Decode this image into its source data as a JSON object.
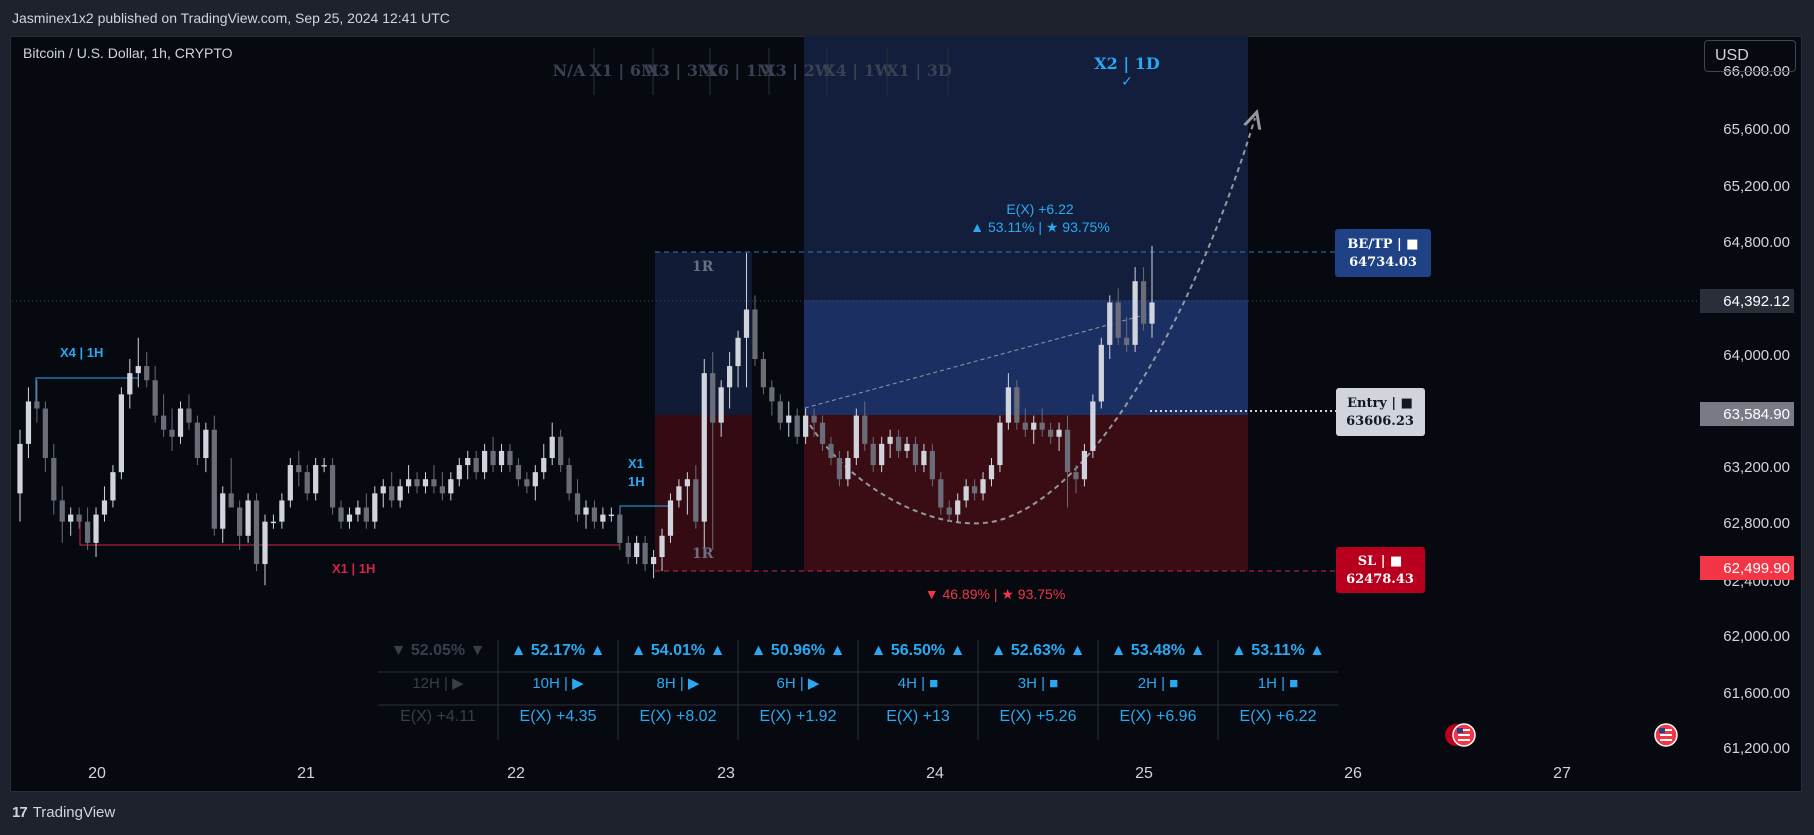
{
  "header": {
    "published": "Jasminex1x2 published on TradingView.com, Sep 25, 2024 12:41 UTC"
  },
  "symbol": {
    "title": "Bitcoin / U.S. Dollar, 1h, CRYPTO"
  },
  "currency_button": "USD",
  "footer": {
    "brand": "TradingView",
    "logo_mark": "17"
  },
  "tf_strip": {
    "items": [
      "N/A",
      "X1 | 6M",
      "X3 | 3M",
      "X6 | 1M",
      "X3 | 2W",
      "X4 | 1W",
      "X1 | 3D"
    ],
    "active": "X2 | 1D",
    "active_mark": "✓"
  },
  "annotations": {
    "x4_1h": "X4 | 1H",
    "x1_1h_low": "X1 | 1H",
    "x1_1h_mid_a": "X1",
    "x1_1h_mid_b": "1H",
    "r_top": "1R",
    "r_bottom": "1R",
    "ex_top": "E(X) +6.22",
    "stats_top": "▲ 53.11% | ★ 93.75%",
    "stats_bottom": "▼ 46.89% | ★ 93.75%"
  },
  "labels": {
    "tp": {
      "title": "BE/TP | ■",
      "value": "64734.03"
    },
    "entry": {
      "title": "Entry | ■",
      "value": "63606.23"
    },
    "sl": {
      "title": "SL | ■",
      "value": "62478.43"
    }
  },
  "price_axis": {
    "ticks": [
      "65,600.00",
      "65,200.00",
      "64,800.00",
      "64,000.00",
      "63,200.00",
      "62,800.00",
      "62,000.00",
      "61,600.00"
    ],
    "partial_top": "66,000.00",
    "partial_bottom": "61,200.00",
    "partial_sl_under": "62,400.00",
    "current": "64,392.12",
    "entry_badge": "63,584.90",
    "sl_badge": "62,499.90"
  },
  "time_axis": {
    "labels": [
      "20",
      "21",
      "22",
      "23",
      "24",
      "25",
      "26",
      "27"
    ]
  },
  "stats_table": {
    "pct": [
      "▼ 52.05% ▼",
      "▲ 52.17% ▲",
      "▲ 54.01% ▲",
      "▲ 50.96% ▲",
      "▲ 56.50% ▲",
      "▲ 52.63% ▲",
      "▲ 53.48% ▲",
      "▲ 53.11% ▲"
    ],
    "tf": [
      "12H | ▶",
      "10H | ▶",
      "8H | ▶",
      "6H | ▶",
      "4H | ■",
      "3H | ■",
      "2H | ■",
      "1H | ■"
    ],
    "ex": [
      "E(X) +4.11",
      "E(X) +4.35",
      "E(X) +8.02",
      "E(X) +1.92",
      "E(X) +13",
      "E(X) +5.26",
      "E(X) +6.96",
      "E(X) +6.22"
    ]
  },
  "colors": {
    "bg": "#060910",
    "accent": "#29a9f1",
    "tp": "#1e4285",
    "sl": "#b8001e",
    "entry_box": "#d1d4dc"
  },
  "chart_data": {
    "type": "candlestick",
    "title": "Bitcoin / U.S. Dollar, 1h, CRYPTO",
    "x_labels": [
      "20",
      "21",
      "22",
      "23",
      "24",
      "25",
      "26",
      "27"
    ],
    "ylim": [
      61200,
      66000
    ],
    "levels": {
      "tp": 64734.03,
      "entry": 63606.23,
      "sl": 62478.43,
      "last": 64392.12
    },
    "candles": [
      [
        63050,
        63500,
        62850,
        63400
      ],
      [
        63400,
        63800,
        63300,
        63700
      ],
      [
        63700,
        63850,
        63550,
        63650
      ],
      [
        63650,
        63700,
        63200,
        63300
      ],
      [
        63300,
        63400,
        62900,
        63000
      ],
      [
        63000,
        63100,
        62700,
        62850
      ],
      [
        62850,
        62950,
        62750,
        62900
      ],
      [
        62900,
        62950,
        62800,
        62850
      ],
      [
        62850,
        62950,
        62650,
        62700
      ],
      [
        62700,
        62950,
        62600,
        62900
      ],
      [
        62900,
        63100,
        62850,
        63000
      ],
      [
        63000,
        63250,
        62950,
        63200
      ],
      [
        63200,
        63800,
        63150,
        63750
      ],
      [
        63750,
        64000,
        63650,
        63900
      ],
      [
        63900,
        64150,
        63800,
        63950
      ],
      [
        63950,
        64050,
        63800,
        63850
      ],
      [
        63850,
        63950,
        63550,
        63600
      ],
      [
        63600,
        63750,
        63450,
        63500
      ],
      [
        63500,
        63650,
        63350,
        63450
      ],
      [
        63450,
        63700,
        63400,
        63650
      ],
      [
        63650,
        63750,
        63500,
        63550
      ],
      [
        63550,
        63600,
        63250,
        63300
      ],
      [
        63300,
        63550,
        63200,
        63500
      ],
      [
        63500,
        63600,
        62750,
        62800
      ],
      [
        62800,
        63100,
        62700,
        63050
      ],
      [
        63050,
        63300,
        62950,
        62950
      ],
      [
        62950,
        63000,
        62650,
        62750
      ],
      [
        62750,
        63050,
        62700,
        63000
      ],
      [
        63000,
        63050,
        62500,
        62550
      ],
      [
        62550,
        62900,
        62400,
        62850
      ],
      [
        62850,
        62900,
        62800,
        62850
      ],
      [
        62850,
        63050,
        62800,
        63000
      ],
      [
        63000,
        63300,
        62950,
        63250
      ],
      [
        63250,
        63350,
        63100,
        63200
      ],
      [
        63200,
        63250,
        63000,
        63050
      ],
      [
        63050,
        63300,
        63000,
        63250
      ],
      [
        63250,
        63300,
        63200,
        63250
      ],
      [
        63250,
        63300,
        62900,
        62950
      ],
      [
        62950,
        63000,
        62800,
        62850
      ],
      [
        62850,
        62950,
        62800,
        62900
      ],
      [
        62900,
        63000,
        62850,
        62950
      ],
      [
        62950,
        63050,
        62800,
        62850
      ],
      [
        62850,
        63100,
        62800,
        63050
      ],
      [
        63050,
        63150,
        62950,
        63100
      ],
      [
        63100,
        63200,
        62950,
        63000
      ],
      [
        63000,
        63150,
        62950,
        63100
      ],
      [
        63100,
        63250,
        63050,
        63150
      ],
      [
        63150,
        63200,
        63050,
        63100
      ],
      [
        63100,
        63200,
        63050,
        63150
      ],
      [
        63150,
        63250,
        63050,
        63100
      ],
      [
        63100,
        63200,
        63000,
        63050
      ],
      [
        63050,
        63200,
        63000,
        63150
      ],
      [
        63150,
        63300,
        63100,
        63250
      ],
      [
        63250,
        63350,
        63150,
        63300
      ],
      [
        63300,
        63350,
        63150,
        63200
      ],
      [
        63200,
        63400,
        63150,
        63350
      ],
      [
        63350,
        63450,
        63200,
        63250
      ],
      [
        63250,
        63400,
        63200,
        63350
      ],
      [
        63350,
        63400,
        63200,
        63250
      ],
      [
        63250,
        63300,
        63100,
        63150
      ],
      [
        63150,
        63200,
        63050,
        63100
      ],
      [
        63100,
        63250,
        63000,
        63200
      ],
      [
        63200,
        63400,
        63150,
        63300
      ],
      [
        63300,
        63550,
        63250,
        63450
      ],
      [
        63450,
        63500,
        63200,
        63250
      ],
      [
        63250,
        63300,
        63000,
        63050
      ],
      [
        63050,
        63150,
        62850,
        62900
      ],
      [
        62900,
        63000,
        62800,
        62950
      ],
      [
        62950,
        63000,
        62800,
        62850
      ],
      [
        62850,
        62950,
        62800,
        62900
      ],
      [
        62900,
        62950,
        62850,
        62900
      ],
      [
        62900,
        62950,
        62650,
        62700
      ],
      [
        62700,
        62750,
        62550,
        62600
      ],
      [
        62600,
        62750,
        62550,
        62700
      ],
      [
        62700,
        62750,
        62500,
        62550
      ],
      [
        62550,
        62650,
        62450,
        62600
      ],
      [
        62600,
        62800,
        62500,
        62750
      ],
      [
        62750,
        63050,
        62700,
        63000
      ],
      [
        63000,
        63150,
        62950,
        63100
      ],
      [
        63100,
        63200,
        62900,
        63150
      ],
      [
        63150,
        63250,
        62800,
        62850
      ],
      [
        62850,
        64000,
        62600,
        63900
      ],
      [
        63900,
        64050,
        62650,
        63550
      ],
      [
        63550,
        63850,
        63450,
        63800
      ],
      [
        63800,
        64050,
        63650,
        63950
      ],
      [
        63950,
        64200,
        63800,
        64150
      ],
      [
        64150,
        64750,
        63800,
        64350
      ],
      [
        64350,
        64450,
        63950,
        64000
      ],
      [
        64000,
        64050,
        63750,
        63800
      ],
      [
        63800,
        63850,
        63600,
        63700
      ],
      [
        63700,
        63750,
        63500,
        63550
      ],
      [
        63550,
        63700,
        63450,
        63600
      ],
      [
        63600,
        63650,
        63400,
        63450
      ],
      [
        63450,
        63650,
        63400,
        63600
      ],
      [
        63600,
        63650,
        63450,
        63550
      ],
      [
        63550,
        63600,
        63350,
        63400
      ],
      [
        63400,
        63450,
        63250,
        63300
      ],
      [
        63300,
        63350,
        63100,
        63150
      ],
      [
        63150,
        63350,
        63100,
        63300
      ],
      [
        63300,
        63650,
        63250,
        63600
      ],
      [
        63600,
        63700,
        63350,
        63400
      ],
      [
        63400,
        63450,
        63200,
        63250
      ],
      [
        63250,
        63450,
        63200,
        63400
      ],
      [
        63400,
        63500,
        63300,
        63450
      ],
      [
        63450,
        63500,
        63300,
        63350
      ],
      [
        63350,
        63450,
        63300,
        63400
      ],
      [
        63400,
        63450,
        63200,
        63250
      ],
      [
        63250,
        63400,
        63200,
        63350
      ],
      [
        63350,
        63400,
        63100,
        63150
      ],
      [
        63150,
        63200,
        62900,
        62950
      ],
      [
        62950,
        63000,
        62850,
        62900
      ],
      [
        62900,
        63050,
        62850,
        63000
      ],
      [
        63000,
        63150,
        62950,
        63100
      ],
      [
        63100,
        63150,
        63000,
        63050
      ],
      [
        63050,
        63200,
        63000,
        63150
      ],
      [
        63150,
        63300,
        63100,
        63250
      ],
      [
        63250,
        63600,
        63200,
        63550
      ],
      [
        63550,
        63900,
        63500,
        63800
      ],
      [
        63800,
        63850,
        63500,
        63550
      ],
      [
        63550,
        63650,
        63450,
        63500
      ],
      [
        63500,
        63600,
        63400,
        63550
      ],
      [
        63550,
        63650,
        63450,
        63500
      ],
      [
        63500,
        63550,
        63400,
        63450
      ],
      [
        63450,
        63550,
        63350,
        63500
      ],
      [
        63500,
        63600,
        62950,
        63200
      ],
      [
        63200,
        63250,
        63050,
        63150
      ],
      [
        63150,
        63400,
        63100,
        63350
      ],
      [
        63350,
        63750,
        63300,
        63700
      ],
      [
        63700,
        64150,
        63650,
        64100
      ],
      [
        64100,
        64450,
        64000,
        64400
      ],
      [
        64400,
        64500,
        64100,
        64150
      ],
      [
        64150,
        64300,
        64050,
        64100
      ],
      [
        64100,
        64650,
        64050,
        64550
      ],
      [
        64550,
        64650,
        64200,
        64250
      ],
      [
        64250,
        64800,
        64150,
        64400
      ]
    ]
  }
}
